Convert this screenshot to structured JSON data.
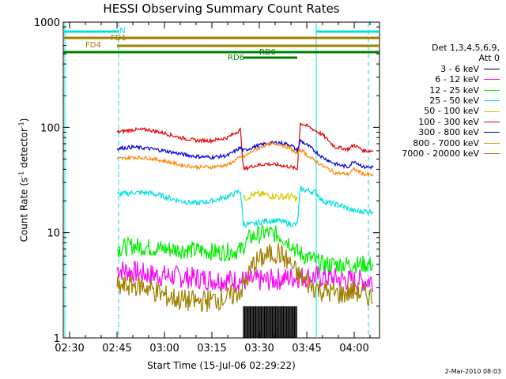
{
  "chart_data": {
    "type": "line",
    "title": "HESSI Observing Summary Count Rates",
    "xlabel": "Start Time (15-Jul-06 02:29:22)",
    "ylabel_main": "Count Rate (s",
    "ylabel_sup1": "-1",
    "ylabel_mid": " detector",
    "ylabel_sup2": "-1",
    "ylabel_end": ")",
    "yscale": "log",
    "ylim": [
      1,
      1000
    ],
    "xlim_minutes": [
      -2,
      98
    ],
    "x_ticks": [
      "02:30",
      "02:45",
      "03:00",
      "03:15",
      "03:30",
      "03:45",
      "04:00"
    ],
    "y_ticks": [
      "1",
      "10",
      "100",
      "1000"
    ],
    "stamp": "2-Mar-2010 08:03",
    "legend_header": [
      "Det 1,3,4,5,6,9,",
      "Att 0"
    ],
    "bars": [
      {
        "label": "N",
        "color": "#00e0e0",
        "segments": [
          [
            -2,
            15.5
          ],
          [
            78,
            98
          ]
        ]
      },
      {
        "label": "FD1",
        "color": "#a08000",
        "segments": [
          [
            -2,
            98
          ]
        ]
      },
      {
        "label": "FD4",
        "color": "#a08000",
        "segments": [
          [
            15,
            98
          ]
        ]
      },
      {
        "label": "RD0",
        "color": "#008000",
        "segments": [
          [
            -2,
            98
          ]
        ]
      },
      {
        "label": "RD6",
        "color": "#008000",
        "segments": [
          [
            55,
            72
          ]
        ]
      }
    ],
    "dashed_lines_minutes": [
      15.5,
      94.5
    ],
    "solid_lines_minutes": [
      -1.5,
      78
    ],
    "series": [
      {
        "name": "3 - 6 keV",
        "color": "#000000",
        "points": [
          [
            55,
            1
          ],
          [
            56,
            2
          ],
          [
            58,
            1.3
          ],
          [
            60,
            2
          ],
          [
            62,
            1.2
          ],
          [
            64,
            2
          ],
          [
            66,
            1.5
          ],
          [
            68,
            2
          ],
          [
            70,
            1.2
          ],
          [
            72,
            2
          ]
        ]
      },
      {
        "name": "6 - 12 keV",
        "color": "#ff00ff",
        "points": [
          [
            15,
            4.5
          ],
          [
            25,
            4
          ],
          [
            35,
            3.8
          ],
          [
            45,
            3.6
          ],
          [
            55,
            3.5
          ],
          [
            62,
            3.5
          ],
          [
            72,
            3.8
          ],
          [
            80,
            3.8
          ],
          [
            90,
            3.5
          ],
          [
            96,
            3.5
          ]
        ]
      },
      {
        "name": "12 - 25 keV",
        "color": "#00ee00",
        "points": [
          [
            15,
            7
          ],
          [
            20,
            7.5
          ],
          [
            30,
            7
          ],
          [
            40,
            6.8
          ],
          [
            48,
            6.5
          ],
          [
            54,
            6.8
          ],
          [
            57,
            9
          ],
          [
            62,
            10
          ],
          [
            66,
            9.5
          ],
          [
            70,
            8
          ],
          [
            72,
            6.5
          ],
          [
            80,
            5
          ],
          [
            90,
            5
          ],
          [
            96,
            5
          ]
        ]
      },
      {
        "name": "25 - 50 keV",
        "color": "#00e0e0",
        "points": [
          [
            15,
            23
          ],
          [
            20,
            24
          ],
          [
            25,
            24
          ],
          [
            30,
            22
          ],
          [
            35,
            20
          ],
          [
            40,
            19
          ],
          [
            45,
            20
          ],
          [
            50,
            22
          ],
          [
            54,
            25
          ],
          [
            55,
            12
          ],
          [
            58,
            12
          ],
          [
            62,
            13
          ],
          [
            66,
            13
          ],
          [
            70,
            12
          ],
          [
            72,
            12
          ],
          [
            73,
            26
          ],
          [
            78,
            24
          ],
          [
            80,
            20
          ],
          [
            86,
            18
          ],
          [
            90,
            16
          ],
          [
            96,
            16
          ]
        ]
      },
      {
        "name": "50 - 100 keV",
        "color": "#d8c800",
        "points": [
          [
            55,
            21
          ],
          [
            58,
            23
          ],
          [
            62,
            23
          ],
          [
            66,
            22
          ],
          [
            70,
            22
          ],
          [
            72,
            21
          ]
        ]
      },
      {
        "name": "100 - 300 keV",
        "color": "#e00000",
        "points": [
          [
            15,
            90
          ],
          [
            20,
            95
          ],
          [
            25,
            95
          ],
          [
            30,
            88
          ],
          [
            35,
            80
          ],
          [
            40,
            75
          ],
          [
            45,
            75
          ],
          [
            50,
            80
          ],
          [
            54,
            95
          ],
          [
            55,
            40
          ],
          [
            58,
            43
          ],
          [
            62,
            45
          ],
          [
            66,
            44
          ],
          [
            70,
            42
          ],
          [
            72,
            40
          ],
          [
            73,
            110
          ],
          [
            76,
            100
          ],
          [
            80,
            85
          ],
          [
            84,
            65
          ],
          [
            88,
            62
          ],
          [
            90,
            68
          ],
          [
            93,
            60
          ],
          [
            96,
            60
          ]
        ]
      },
      {
        "name": "300 - 800 keV",
        "color": "#0000e0",
        "points": [
          [
            15,
            63
          ],
          [
            20,
            65
          ],
          [
            25,
            63
          ],
          [
            30,
            60
          ],
          [
            35,
            56
          ],
          [
            40,
            53
          ],
          [
            45,
            52
          ],
          [
            50,
            54
          ],
          [
            54,
            64
          ],
          [
            55,
            60
          ],
          [
            58,
            65
          ],
          [
            62,
            70
          ],
          [
            66,
            72
          ],
          [
            70,
            68
          ],
          [
            72,
            60
          ],
          [
            73,
            75
          ],
          [
            76,
            65
          ],
          [
            80,
            52
          ],
          [
            84,
            45
          ],
          [
            88,
            42
          ],
          [
            90,
            48
          ],
          [
            93,
            42
          ],
          [
            96,
            42
          ]
        ]
      },
      {
        "name": "800 - 7000 keV",
        "color": "#ff8000",
        "points": [
          [
            15,
            50
          ],
          [
            20,
            52
          ],
          [
            25,
            51
          ],
          [
            30,
            48
          ],
          [
            35,
            44
          ],
          [
            40,
            42
          ],
          [
            45,
            42
          ],
          [
            50,
            44
          ],
          [
            54,
            52
          ],
          [
            55,
            52
          ],
          [
            58,
            60
          ],
          [
            62,
            68
          ],
          [
            66,
            70
          ],
          [
            70,
            63
          ],
          [
            72,
            55
          ],
          [
            73,
            62
          ],
          [
            76,
            52
          ],
          [
            80,
            43
          ],
          [
            84,
            37
          ],
          [
            88,
            36
          ],
          [
            90,
            40
          ],
          [
            93,
            36
          ],
          [
            96,
            35
          ]
        ]
      },
      {
        "name": "7000 - 20000 keV",
        "color": "#a08000",
        "points": [
          [
            15,
            3
          ],
          [
            20,
            3.2
          ],
          [
            25,
            3
          ],
          [
            30,
            2.5
          ],
          [
            35,
            2.3
          ],
          [
            40,
            2.2
          ],
          [
            45,
            2.3
          ],
          [
            50,
            2.4
          ],
          [
            54,
            2.8
          ],
          [
            56,
            3.5
          ],
          [
            58,
            5
          ],
          [
            62,
            6
          ],
          [
            66,
            6.5
          ],
          [
            70,
            5
          ],
          [
            72,
            4
          ],
          [
            76,
            3.2
          ],
          [
            80,
            2.8
          ],
          [
            86,
            2.6
          ],
          [
            90,
            2.8
          ],
          [
            96,
            2.4
          ]
        ]
      }
    ]
  }
}
